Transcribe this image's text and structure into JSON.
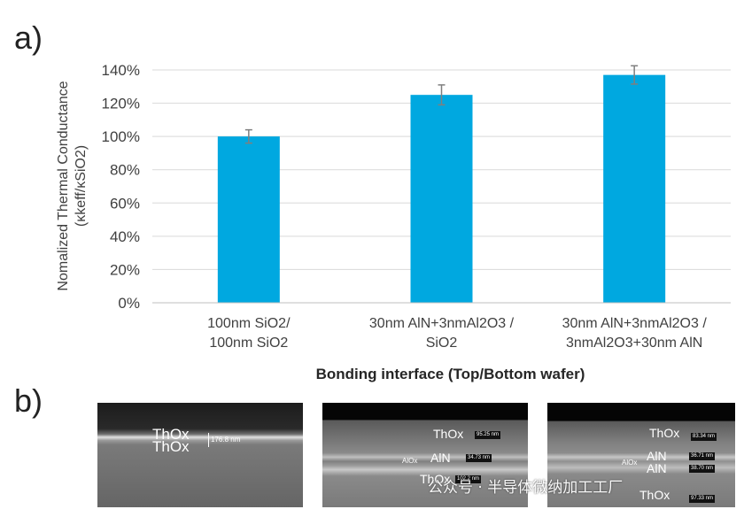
{
  "panel_a_label": "a)",
  "panel_b_label": "b)",
  "chart_data": {
    "type": "bar",
    "categories": [
      [
        "100nm SiO2/",
        "100nm SiO2"
      ],
      [
        "30nm AlN+3nmAl2O3 /",
        "SiO2"
      ],
      [
        "30nm AlN+3nmAl2O3 /",
        "3nmAl2O3+30nm AlN"
      ]
    ],
    "values": [
      100,
      125,
      137
    ],
    "errors": [
      4,
      6,
      5.5
    ],
    "ylabel_line1": "Nomalized Thermal Conductance",
    "ylabel_line2": "(κkeff/κSiO2)",
    "xlabel": "Bonding interface (Top/Bottom wafer)",
    "ylim": [
      0,
      140
    ],
    "yticks": [
      "0%",
      "20%",
      "40%",
      "60%",
      "80%",
      "100%",
      "120%",
      "140%"
    ],
    "grid": true,
    "bar_color": "#00A8E0"
  },
  "sem_images": [
    {
      "labels": [
        "ThOx",
        "ThOx"
      ],
      "measurements": [
        "176.8 nm"
      ]
    },
    {
      "labels": [
        "ThOx",
        "AlOx",
        "AlN",
        "ThOx"
      ],
      "measurements": [
        "95.25 nm",
        "34.73 nm",
        "102.2 nm"
      ]
    },
    {
      "labels": [
        "ThOx",
        "AlOx",
        "AlN",
        "AlN",
        "ThOx"
      ],
      "measurements": [
        "83.34 nm",
        "36.71 nm",
        "38.70 nm",
        "97.33 nm"
      ]
    }
  ],
  "watermark": "公众号 · 半导体微纳加工工厂"
}
